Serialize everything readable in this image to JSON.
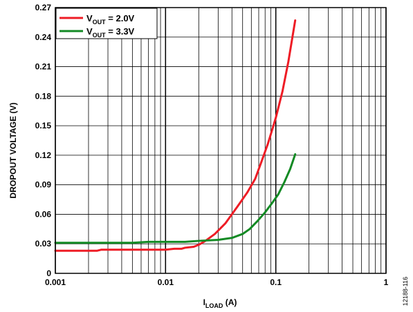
{
  "chart_data": {
    "type": "line",
    "x_scale": "log",
    "xlim": [
      0.001,
      1
    ],
    "ylim": [
      0,
      0.27
    ],
    "grid": true,
    "legend_position": "top-left",
    "xlabel": {
      "main": "I",
      "sub": "LOAD",
      "rest": " (A)"
    },
    "ylabel": "DROPOUT VOLTAGE (V)",
    "x_ticks": [
      {
        "value": 0.001,
        "label": "0.001"
      },
      {
        "value": 0.01,
        "label": "0.01"
      },
      {
        "value": 0.1,
        "label": "0.1"
      },
      {
        "value": 1,
        "label": "1"
      }
    ],
    "y_ticks": [
      {
        "value": 0,
        "label": "0"
      },
      {
        "value": 0.03,
        "label": "0.03"
      },
      {
        "value": 0.06,
        "label": "0.06"
      },
      {
        "value": 0.09,
        "label": "0.09"
      },
      {
        "value": 0.12,
        "label": "0.12"
      },
      {
        "value": 0.15,
        "label": "0.15"
      },
      {
        "value": 0.18,
        "label": "0.18"
      },
      {
        "value": 0.21,
        "label": "0.21"
      },
      {
        "value": 0.24,
        "label": "0.24"
      },
      {
        "value": 0.27,
        "label": "0.27"
      }
    ],
    "series": [
      {
        "legend": {
          "main": "V",
          "sub": "OUT",
          "rest": " = 2.0V"
        },
        "color": "#ee1c25",
        "points": [
          [
            0.001,
            0.023
          ],
          [
            0.0024,
            0.023
          ],
          [
            0.0026,
            0.024
          ],
          [
            0.005,
            0.024
          ],
          [
            0.01,
            0.024
          ],
          [
            0.012,
            0.025
          ],
          [
            0.014,
            0.025
          ],
          [
            0.015,
            0.026
          ],
          [
            0.018,
            0.027
          ],
          [
            0.02,
            0.029
          ],
          [
            0.023,
            0.033
          ],
          [
            0.028,
            0.04
          ],
          [
            0.035,
            0.051
          ],
          [
            0.045,
            0.068
          ],
          [
            0.055,
            0.082
          ],
          [
            0.065,
            0.096
          ],
          [
            0.075,
            0.115
          ],
          [
            0.085,
            0.132
          ],
          [
            0.1,
            0.158
          ],
          [
            0.115,
            0.185
          ],
          [
            0.13,
            0.215
          ],
          [
            0.15,
            0.257
          ]
        ]
      },
      {
        "legend": {
          "main": "V",
          "sub": "OUT",
          "rest": " = 3.3V"
        },
        "color": "#138a24",
        "points": [
          [
            0.001,
            0.031
          ],
          [
            0.005,
            0.031
          ],
          [
            0.007,
            0.032
          ],
          [
            0.015,
            0.032
          ],
          [
            0.02,
            0.033
          ],
          [
            0.03,
            0.034
          ],
          [
            0.04,
            0.036
          ],
          [
            0.05,
            0.04
          ],
          [
            0.058,
            0.045
          ],
          [
            0.068,
            0.053
          ],
          [
            0.08,
            0.062
          ],
          [
            0.092,
            0.071
          ],
          [
            0.105,
            0.08
          ],
          [
            0.12,
            0.093
          ],
          [
            0.135,
            0.106
          ],
          [
            0.15,
            0.121
          ]
        ]
      }
    ]
  },
  "figure_id": "12188-116"
}
